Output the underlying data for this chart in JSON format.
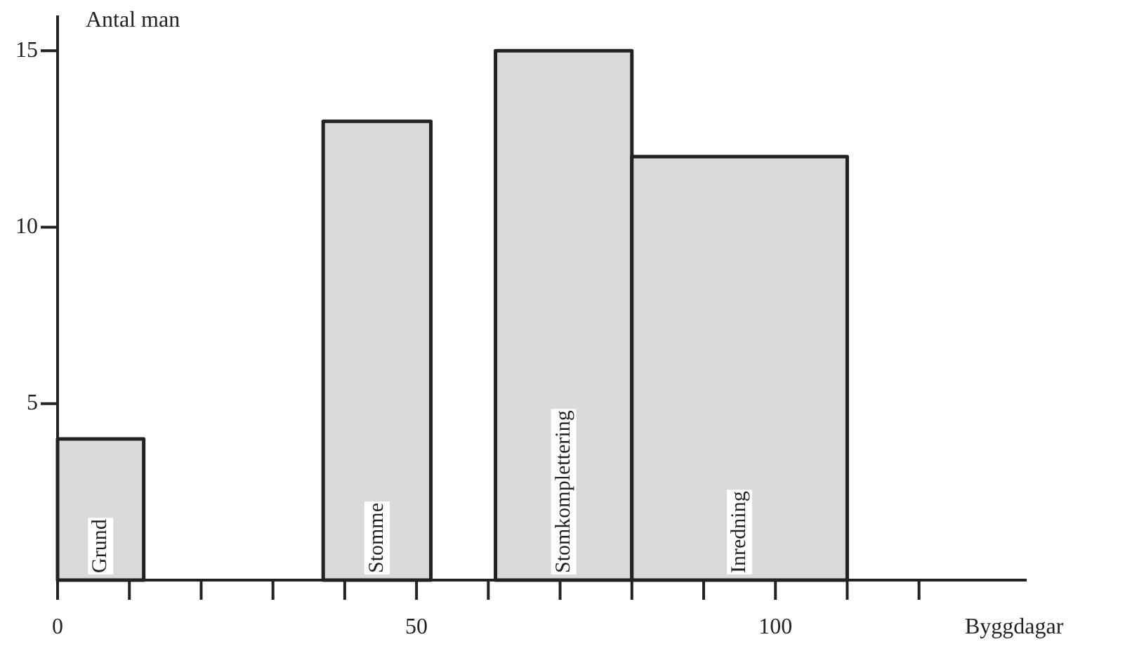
{
  "chart_data": {
    "type": "histogram",
    "xlabel": "Byggdagar",
    "ylabel": "Antal man",
    "bins": [
      0,
      12,
      37,
      52,
      61,
      80,
      110
    ],
    "values": [
      4,
      0,
      13,
      0,
      15,
      12
    ],
    "color": "#d9d9d9",
    "xlim": [
      0,
      135
    ],
    "xticks": [
      0,
      {
        "value": 10,
        "label": null
      },
      {
        "value": 20,
        "label": null
      },
      {
        "value": 30,
        "label": null
      },
      {
        "value": 40,
        "label": null
      },
      50,
      {
        "value": 60,
        "label": null
      },
      {
        "value": 70,
        "label": null
      },
      {
        "value": 80,
        "label": null
      },
      {
        "value": 90,
        "label": null
      },
      100,
      {
        "value": 110,
        "label": null
      },
      {
        "value": 120,
        "label": null
      }
    ],
    "ylim": [
      0,
      16
    ],
    "yticks": [
      5,
      10,
      15
    ],
    "annotations": [
      "Grund",
      "Stomme",
      "Stomkomplettering",
      "Inredning"
    ],
    "grid": false,
    "legend": false
  }
}
